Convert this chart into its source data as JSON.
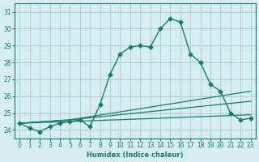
{
  "bg_color": "#d6eef2",
  "grid_color": "#aacdd6",
  "line_color": "#1a7a6e",
  "xlabel": "Humidex (Indice chaleur)",
  "xlim": [
    -0.5,
    23.5
  ],
  "ylim": [
    23.5,
    31.5
  ],
  "yticks": [
    24,
    25,
    26,
    27,
    28,
    29,
    30,
    31
  ],
  "xticks": [
    0,
    1,
    2,
    3,
    4,
    5,
    6,
    7,
    8,
    9,
    10,
    11,
    12,
    13,
    14,
    15,
    16,
    17,
    18,
    19,
    20,
    21,
    22,
    23
  ],
  "series1_x": [
    0,
    1,
    2,
    3,
    4,
    5,
    6,
    7,
    8,
    9,
    10,
    11,
    12,
    13,
    14,
    15,
    16,
    17,
    18,
    19,
    20,
    21,
    22,
    23
  ],
  "series1_y": [
    24.4,
    24.1,
    23.9,
    24.2,
    24.4,
    24.5,
    24.6,
    24.2,
    25.5,
    27.3,
    28.5,
    28.9,
    29.0,
    28.9,
    30.0,
    30.6,
    30.4,
    28.5,
    28.0,
    26.7,
    26.3,
    25.0,
    24.6,
    24.7
  ],
  "series2_x": [
    0,
    5,
    23
  ],
  "series2_y": [
    24.4,
    24.6,
    25.7
  ],
  "series3_x": [
    0,
    5,
    23
  ],
  "series3_y": [
    24.4,
    24.6,
    26.3
  ],
  "series4_x": [
    0,
    5,
    23
  ],
  "series4_y": [
    24.4,
    24.5,
    24.9
  ]
}
